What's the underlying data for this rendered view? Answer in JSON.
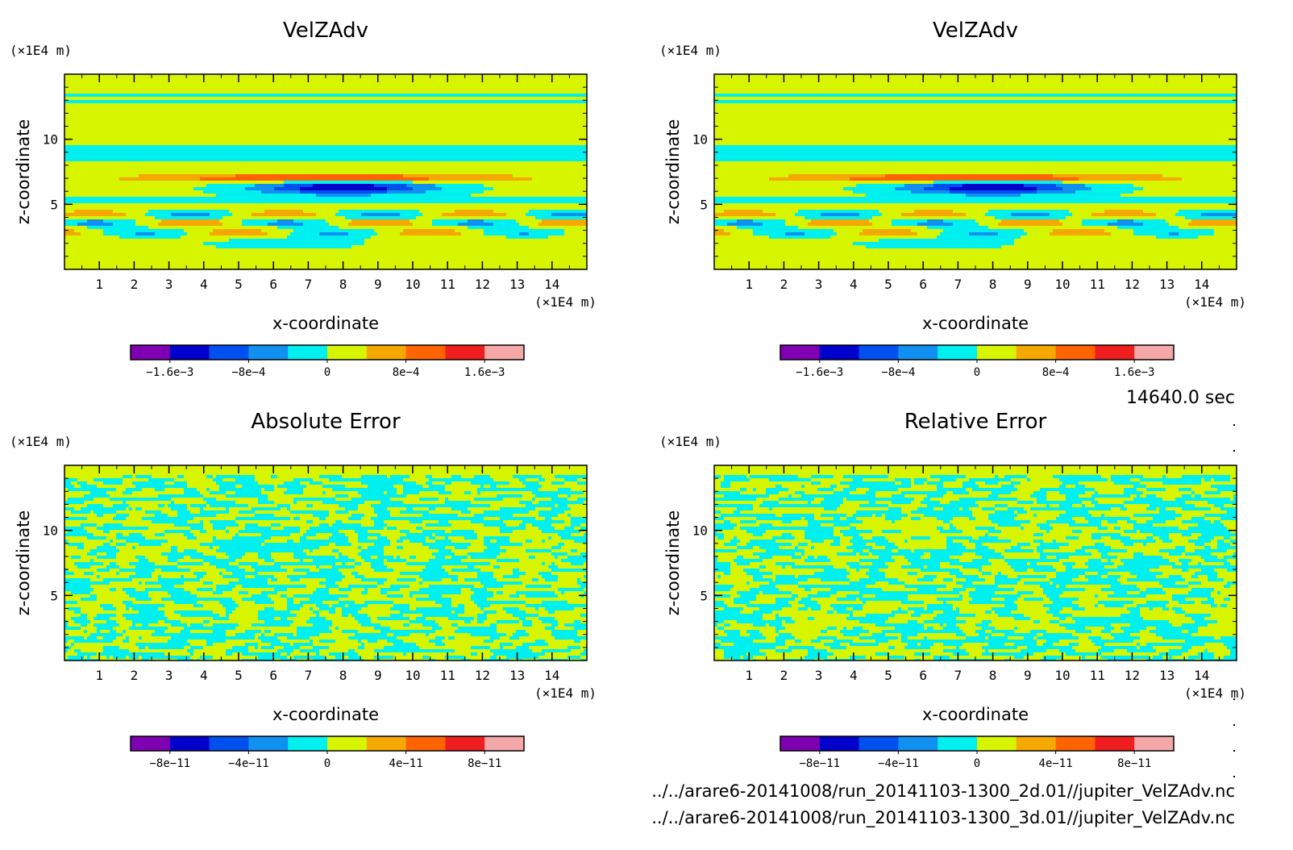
{
  "timestamp": "14640.0 sec",
  "files": [
    "../../arare6-20141008/run_20141103-1300_2d.01//jupiter_VelZAdv.nc",
    "../../arare6-20141008/run_20141103-1300_3d.01//jupiter_VelZAdv.nc"
  ],
  "colorscale": [
    "#7f00b2",
    "#0000cc",
    "#0050f0",
    "#1090f0",
    "#00f0f0",
    "#d8f500",
    "#f5a800",
    "#ff6400",
    "#f01e1e",
    "#f5a8a8"
  ],
  "chart_data": [
    {
      "id": "velzadv-2d",
      "type": "heatmap",
      "title": "VelZAdv",
      "xlabel": "x-coordinate",
      "ylabel": "z-coordinate",
      "x_unit": "(×1E4 m)",
      "y_unit": "(×1E4 m)",
      "xlim": [
        0,
        15
      ],
      "ylim": [
        0,
        15
      ],
      "x_ticks": [
        1,
        2,
        3,
        4,
        5,
        6,
        7,
        8,
        9,
        10,
        11,
        12,
        13,
        14
      ],
      "y_ticks": [
        5,
        10
      ],
      "pattern": "field",
      "colorbar": {
        "levels": [
          -0.002,
          -0.0016,
          -0.0012,
          -0.0008,
          -0.0004,
          0,
          0.0004,
          0.0008,
          0.0012,
          0.0016,
          0.002
        ],
        "tick_values": [
          -0.0016,
          -0.0008,
          0,
          0.0008,
          0.0016
        ],
        "tick_labels": [
          "−1.6e−3",
          "−8e−4",
          "0",
          "8e−4",
          "1.6e−3"
        ]
      }
    },
    {
      "id": "velzadv-3d",
      "type": "heatmap",
      "title": "VelZAdv",
      "xlabel": "x-coordinate",
      "ylabel": "z-coordinate",
      "x_unit": "(×1E4 m)",
      "y_unit": "(×1E4 m)",
      "xlim": [
        0,
        15
      ],
      "ylim": [
        0,
        15
      ],
      "x_ticks": [
        1,
        2,
        3,
        4,
        5,
        6,
        7,
        8,
        9,
        10,
        11,
        12,
        13,
        14
      ],
      "y_ticks": [
        5,
        10
      ],
      "pattern": "field",
      "colorbar": {
        "levels": [
          -0.002,
          -0.0016,
          -0.0012,
          -0.0008,
          -0.0004,
          0,
          0.0004,
          0.0008,
          0.0012,
          0.0016,
          0.002
        ],
        "tick_values": [
          -0.0016,
          -0.0008,
          0,
          0.0008,
          0.0016
        ],
        "tick_labels": [
          "−1.6e−3",
          "−8e−4",
          "0",
          "8e−4",
          "1.6e−3"
        ]
      }
    },
    {
      "id": "absolute-error",
      "type": "heatmap",
      "title": "Absolute Error",
      "xlabel": "x-coordinate",
      "ylabel": "z-coordinate",
      "x_unit": "(×1E4 m)",
      "y_unit": "(×1E4 m)",
      "xlim": [
        0,
        15
      ],
      "ylim": [
        0,
        15
      ],
      "x_ticks": [
        1,
        2,
        3,
        4,
        5,
        6,
        7,
        8,
        9,
        10,
        11,
        12,
        13,
        14
      ],
      "y_ticks": [
        5,
        10
      ],
      "pattern": "noise",
      "colorbar": {
        "levels": [
          -1e-10,
          -8e-11,
          -6e-11,
          -4e-11,
          -2e-11,
          0,
          2e-11,
          4e-11,
          6e-11,
          8e-11,
          1e-10
        ],
        "tick_values": [
          -8e-11,
          -4e-11,
          0,
          4e-11,
          8e-11
        ],
        "tick_labels": [
          "−8e−11",
          "−4e−11",
          "0",
          "4e−11",
          "8e−11"
        ]
      }
    },
    {
      "id": "relative-error",
      "type": "heatmap",
      "title": "Relative Error",
      "xlabel": "x-coordinate",
      "ylabel": "z-coordinate",
      "x_unit": "(×1E4 m)",
      "y_unit": "(×1E4 m)",
      "xlim": [
        0,
        15
      ],
      "ylim": [
        0,
        15
      ],
      "x_ticks": [
        1,
        2,
        3,
        4,
        5,
        6,
        7,
        8,
        9,
        10,
        11,
        12,
        13,
        14
      ],
      "y_ticks": [
        5,
        10
      ],
      "pattern": "noise",
      "colorbar": {
        "levels": [
          -1e-10,
          -8e-11,
          -6e-11,
          -4e-11,
          -2e-11,
          0,
          2e-11,
          4e-11,
          6e-11,
          8e-11,
          1e-10
        ],
        "tick_values": [
          -8e-11,
          -4e-11,
          0,
          4e-11,
          8e-11
        ],
        "tick_labels": [
          "−8e−11",
          "−4e−11",
          "0",
          "4e−11",
          "8e−11"
        ]
      }
    }
  ]
}
